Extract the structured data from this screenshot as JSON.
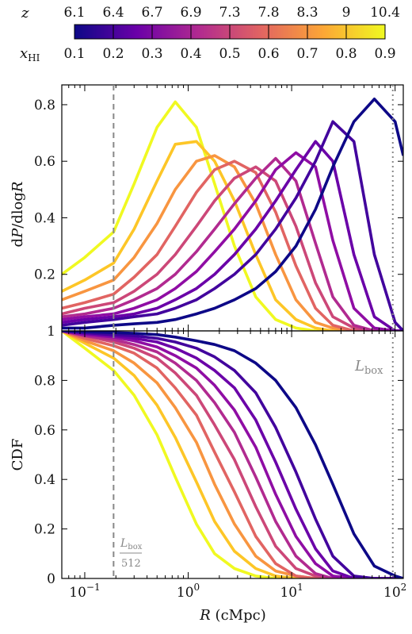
{
  "chart_data": [
    {
      "type": "line",
      "panel": "top",
      "ylabel_main": "d",
      "ylabel_var": "P",
      "ylabel_mid": "/dlog",
      "ylabel_var2": "R",
      "xscale": "log",
      "xlim": [
        0.06,
        120
      ],
      "ylim": [
        0,
        0.87
      ],
      "yticks": [
        "0.2",
        "0.4",
        "0.6",
        "0.8"
      ],
      "ytick_values": [
        0.2,
        0.4,
        0.6,
        0.8
      ],
      "x": [
        0.06,
        0.1,
        0.19,
        0.3,
        0.5,
        0.75,
        1.2,
        1.8,
        2.8,
        4.5,
        7,
        11,
        17,
        25,
        40,
        63,
        100,
        120
      ],
      "series": [
        {
          "color": "#f0f921",
          "values": [
            0.2,
            0.26,
            0.35,
            0.52,
            0.72,
            0.81,
            0.72,
            0.52,
            0.3,
            0.12,
            0.04,
            0.01,
            0.0,
            0.0,
            0.0,
            0.0,
            0.0,
            0.0
          ]
        },
        {
          "color": "#fdc627",
          "values": [
            0.14,
            0.18,
            0.24,
            0.36,
            0.53,
            0.66,
            0.67,
            0.6,
            0.46,
            0.27,
            0.11,
            0.04,
            0.01,
            0.0,
            0.0,
            0.0,
            0.0,
            0.0
          ]
        },
        {
          "color": "#f89540",
          "values": [
            0.11,
            0.14,
            0.18,
            0.26,
            0.38,
            0.5,
            0.6,
            0.62,
            0.58,
            0.45,
            0.27,
            0.11,
            0.03,
            0.01,
            0.0,
            0.0,
            0.0,
            0.0
          ]
        },
        {
          "color": "#e16462",
          "values": [
            0.08,
            0.1,
            0.13,
            0.19,
            0.27,
            0.37,
            0.49,
            0.57,
            0.6,
            0.56,
            0.42,
            0.23,
            0.08,
            0.02,
            0.0,
            0.0,
            0.0,
            0.0
          ]
        },
        {
          "color": "#cc4778",
          "values": [
            0.06,
            0.08,
            0.1,
            0.14,
            0.2,
            0.27,
            0.37,
            0.46,
            0.54,
            0.58,
            0.53,
            0.37,
            0.17,
            0.05,
            0.01,
            0.0,
            0.0,
            0.0
          ]
        },
        {
          "color": "#b12a90",
          "values": [
            0.05,
            0.06,
            0.08,
            0.11,
            0.15,
            0.2,
            0.28,
            0.36,
            0.45,
            0.54,
            0.61,
            0.53,
            0.31,
            0.12,
            0.02,
            0.0,
            0.0,
            0.0
          ]
        },
        {
          "color": "#8f0da4",
          "values": [
            0.04,
            0.05,
            0.06,
            0.08,
            0.11,
            0.15,
            0.21,
            0.28,
            0.36,
            0.46,
            0.57,
            0.63,
            0.58,
            0.32,
            0.08,
            0.01,
            0.0,
            0.0
          ]
        },
        {
          "color": "#6a00a8",
          "values": [
            0.03,
            0.04,
            0.05,
            0.06,
            0.08,
            0.11,
            0.15,
            0.2,
            0.27,
            0.36,
            0.46,
            0.57,
            0.67,
            0.6,
            0.27,
            0.05,
            0.0,
            0.0
          ]
        },
        {
          "color": "#42039d",
          "values": [
            0.02,
            0.03,
            0.04,
            0.05,
            0.06,
            0.08,
            0.11,
            0.15,
            0.2,
            0.27,
            0.36,
            0.47,
            0.6,
            0.74,
            0.67,
            0.27,
            0.03,
            0.0
          ]
        },
        {
          "color": "#0d0887",
          "values": [
            0.01,
            0.01,
            0.02,
            0.025,
            0.03,
            0.04,
            0.06,
            0.08,
            0.11,
            0.15,
            0.21,
            0.3,
            0.43,
            0.58,
            0.74,
            0.82,
            0.74,
            0.62
          ]
        }
      ]
    },
    {
      "type": "line",
      "panel": "bottom",
      "ylabel": "CDF",
      "xlabel_var": "R",
      "xlabel_unit": " (cMpc)",
      "xscale": "log",
      "xlim": [
        0.06,
        120
      ],
      "ylim": [
        0,
        1
      ],
      "yticks": [
        "0",
        "0.2",
        "0.4",
        "0.6",
        "0.8",
        "1"
      ],
      "ytick_values": [
        0,
        0.2,
        0.4,
        0.6,
        0.8,
        1.0
      ],
      "xtick_base": [
        "10",
        "10",
        "10",
        "10"
      ],
      "xtick_exp": [
        "−1",
        "0",
        "1",
        "2"
      ],
      "xtick_values": [
        0.1,
        1,
        10,
        100
      ],
      "x": [
        0.06,
        0.1,
        0.19,
        0.3,
        0.5,
        0.75,
        1.2,
        1.8,
        2.8,
        4.5,
        7,
        11,
        17,
        25,
        40,
        63,
        100,
        120
      ],
      "series": [
        {
          "color": "#f0f921",
          "values": [
            1.0,
            0.93,
            0.84,
            0.74,
            0.58,
            0.41,
            0.22,
            0.1,
            0.04,
            0.01,
            0.0,
            0.0,
            0.0,
            0.0,
            0.0,
            0.0,
            0.0,
            0.0
          ]
        },
        {
          "color": "#fdc627",
          "values": [
            1.0,
            0.95,
            0.89,
            0.82,
            0.7,
            0.57,
            0.39,
            0.23,
            0.11,
            0.04,
            0.01,
            0.0,
            0.0,
            0.0,
            0.0,
            0.0,
            0.0,
            0.0
          ]
        },
        {
          "color": "#f89540",
          "values": [
            1.0,
            0.96,
            0.92,
            0.87,
            0.79,
            0.69,
            0.55,
            0.38,
            0.22,
            0.09,
            0.03,
            0.01,
            0.0,
            0.0,
            0.0,
            0.0,
            0.0,
            0.0
          ]
        },
        {
          "color": "#e16462",
          "values": [
            1.0,
            0.97,
            0.94,
            0.91,
            0.85,
            0.77,
            0.66,
            0.51,
            0.35,
            0.17,
            0.06,
            0.01,
            0.0,
            0.0,
            0.0,
            0.0,
            0.0,
            0.0
          ]
        },
        {
          "color": "#cc4778",
          "values": [
            1.0,
            0.98,
            0.955,
            0.93,
            0.89,
            0.83,
            0.74,
            0.62,
            0.48,
            0.29,
            0.13,
            0.04,
            0.01,
            0.0,
            0.0,
            0.0,
            0.0,
            0.0
          ]
        },
        {
          "color": "#b12a90",
          "values": [
            1.0,
            0.98,
            0.965,
            0.945,
            0.915,
            0.87,
            0.8,
            0.71,
            0.59,
            0.41,
            0.23,
            0.09,
            0.02,
            0.0,
            0.0,
            0.0,
            0.0,
            0.0
          ]
        },
        {
          "color": "#8f0da4",
          "values": [
            1.0,
            0.985,
            0.975,
            0.96,
            0.935,
            0.9,
            0.85,
            0.78,
            0.68,
            0.53,
            0.34,
            0.17,
            0.06,
            0.01,
            0.0,
            0.0,
            0.0,
            0.0
          ]
        },
        {
          "color": "#6a00a8",
          "values": [
            1.0,
            0.99,
            0.98,
            0.97,
            0.955,
            0.93,
            0.89,
            0.84,
            0.77,
            0.64,
            0.47,
            0.28,
            0.12,
            0.03,
            0.0,
            0.0,
            0.0,
            0.0
          ]
        },
        {
          "color": "#42039d",
          "values": [
            1.0,
            0.993,
            0.985,
            0.98,
            0.97,
            0.955,
            0.93,
            0.895,
            0.84,
            0.75,
            0.61,
            0.43,
            0.24,
            0.09,
            0.01,
            0.0,
            0.0,
            0.0
          ]
        },
        {
          "color": "#0d0887",
          "values": [
            1.0,
            0.997,
            0.993,
            0.99,
            0.985,
            0.975,
            0.96,
            0.945,
            0.92,
            0.87,
            0.8,
            0.69,
            0.54,
            0.38,
            0.18,
            0.05,
            0.01,
            0.0
          ]
        }
      ]
    }
  ],
  "colorbar": {
    "z_label": "z",
    "z_ticks": [
      "6.1",
      "6.4",
      "6.7",
      "6.9",
      "7.3",
      "7.8",
      "8.3",
      "9",
      "10.4"
    ],
    "xhi_label_main": "x",
    "xhi_label_sub": "HI",
    "xhi_ticks": [
      "0.1",
      "0.2",
      "0.3",
      "0.4",
      "0.5",
      "0.6",
      "0.7",
      "0.8",
      "0.9"
    ],
    "colors": [
      "#0d0887",
      "#6a00a8",
      "#b12a90",
      "#e16462",
      "#fca636",
      "#f0f921"
    ]
  },
  "annotations": {
    "lbox_main": "L",
    "lbox_sub": "box",
    "lbox512_num_main": "L",
    "lbox512_num_sub": "box",
    "lbox512_den": "512",
    "dashed_line_x": 0.19,
    "dotted_line_x": 95
  }
}
